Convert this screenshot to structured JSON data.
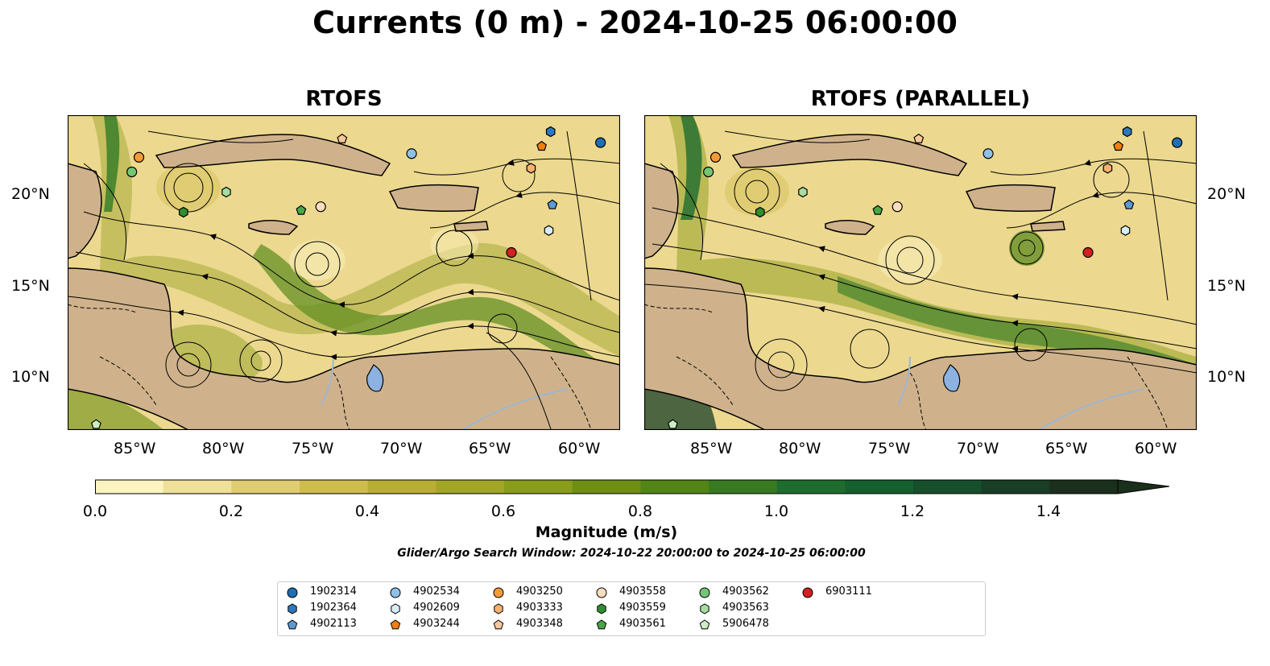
{
  "title": "Currents (0 m) - 2024-10-25 06:00:00",
  "panels": [
    {
      "title": "RTOFS"
    },
    {
      "title": "RTOFS (PARALLEL)"
    }
  ],
  "axes": {
    "lon_ticks": [
      "85°W",
      "80°W",
      "75°W",
      "70°W",
      "65°W",
      "60°W"
    ],
    "lat_ticks": [
      "20°N",
      "15°N",
      "10°N"
    ]
  },
  "colorbar": {
    "label": "Magnitude (m/s)",
    "ticks": [
      "0.0",
      "0.2",
      "0.4",
      "0.6",
      "0.8",
      "1.0",
      "1.2",
      "1.4"
    ],
    "colors": [
      "#fcf4c0",
      "#efe09a",
      "#e0cc72",
      "#cebc4e",
      "#b8ae36",
      "#a2a628",
      "#8a9c1c",
      "#6e8e16",
      "#528418",
      "#377a22",
      "#1e6c2e",
      "#14602f",
      "#154f2b",
      "#183e25",
      "#1a2f1c"
    ]
  },
  "search_window": "Glider/Argo Search Window: 2024-10-22 20:00:00 to 2024-10-25 06:00:00",
  "legend": [
    {
      "id": "1902314",
      "marker": "circle",
      "color": "#1f6fb4"
    },
    {
      "id": "1902364",
      "marker": "hexagon",
      "color": "#2f78bc"
    },
    {
      "id": "4902113",
      "marker": "pentagon",
      "color": "#5b9bd5"
    },
    {
      "id": "4902534",
      "marker": "circle",
      "color": "#8fc1e6"
    },
    {
      "id": "4902609",
      "marker": "hexagon",
      "color": "#d8ecf8"
    },
    {
      "id": "4903244",
      "marker": "pentagon",
      "color": "#f07f12"
    },
    {
      "id": "4903250",
      "marker": "circle",
      "color": "#f39a3a"
    },
    {
      "id": "4903333",
      "marker": "hexagon",
      "color": "#f6b070"
    },
    {
      "id": "4903348",
      "marker": "pentagon",
      "color": "#f8c79a"
    },
    {
      "id": "4903558",
      "marker": "circle",
      "color": "#fbdcc0"
    },
    {
      "id": "4903559",
      "marker": "hexagon",
      "color": "#2f8f2f"
    },
    {
      "id": "4903561",
      "marker": "pentagon",
      "color": "#47a846"
    },
    {
      "id": "4903562",
      "marker": "circle",
      "color": "#74c676"
    },
    {
      "id": "4903563",
      "marker": "hexagon",
      "color": "#a6dca0"
    },
    {
      "id": "5906478",
      "marker": "pentagon",
      "color": "#cbeec4"
    },
    {
      "id": "6903111",
      "marker": "circle",
      "color": "#d42020"
    }
  ],
  "map_extent": {
    "lon_min": -89,
    "lon_max": -58,
    "lat_min": 7,
    "lat_max": 24.2
  },
  "floats_left": [
    {
      "id": "1902314",
      "lon": -59.1,
      "lat": 22.7
    },
    {
      "id": "1902364",
      "lon": -61.9,
      "lat": 23.3
    },
    {
      "id": "4903244",
      "lon": -62.4,
      "lat": 22.5
    },
    {
      "id": "4902534",
      "lon": -69.7,
      "lat": 22.1
    },
    {
      "id": "4903348",
      "lon": -73.6,
      "lat": 22.9
    },
    {
      "id": "4903250",
      "lon": -85.0,
      "lat": 21.9
    },
    {
      "id": "4903562",
      "lon": -85.4,
      "lat": 21.1
    },
    {
      "id": "4903563",
      "lon": -80.1,
      "lat": 20.0
    },
    {
      "id": "4903559",
      "lon": -82.5,
      "lat": 18.9
    },
    {
      "id": "4903561",
      "lon": -75.9,
      "lat": 19.0
    },
    {
      "id": "4903558",
      "lon": -74.8,
      "lat": 19.2
    },
    {
      "id": "4903333",
      "lon": -63.0,
      "lat": 21.3
    },
    {
      "id": "4902113",
      "lon": -61.8,
      "lat": 19.3
    },
    {
      "id": "4902609",
      "lon": -62.0,
      "lat": 17.9
    },
    {
      "id": "6903111",
      "lon": -64.1,
      "lat": 16.7
    },
    {
      "id": "5906478",
      "lon": -87.4,
      "lat": 7.3
    }
  ],
  "floats_right": [
    {
      "id": "1902314",
      "lon": -59.1,
      "lat": 22.7
    },
    {
      "id": "1902364",
      "lon": -61.9,
      "lat": 23.3
    },
    {
      "id": "4903244",
      "lon": -62.4,
      "lat": 22.5
    },
    {
      "id": "4902534",
      "lon": -69.7,
      "lat": 22.1
    },
    {
      "id": "4903348",
      "lon": -73.6,
      "lat": 22.9
    },
    {
      "id": "4903250",
      "lon": -85.0,
      "lat": 21.9
    },
    {
      "id": "4903562",
      "lon": -85.4,
      "lat": 21.1
    },
    {
      "id": "4903563",
      "lon": -80.1,
      "lat": 20.0
    },
    {
      "id": "4903559",
      "lon": -82.5,
      "lat": 18.9
    },
    {
      "id": "4903561",
      "lon": -75.9,
      "lat": 19.0
    },
    {
      "id": "4903558",
      "lon": -74.8,
      "lat": 19.2
    },
    {
      "id": "4903333",
      "lon": -63.0,
      "lat": 21.3
    },
    {
      "id": "4902113",
      "lon": -61.8,
      "lat": 19.3
    },
    {
      "id": "4902609",
      "lon": -62.0,
      "lat": 17.9
    },
    {
      "id": "6903111",
      "lon": -64.1,
      "lat": 16.7
    },
    {
      "id": "5906478",
      "lon": -87.4,
      "lat": 7.3
    }
  ]
}
